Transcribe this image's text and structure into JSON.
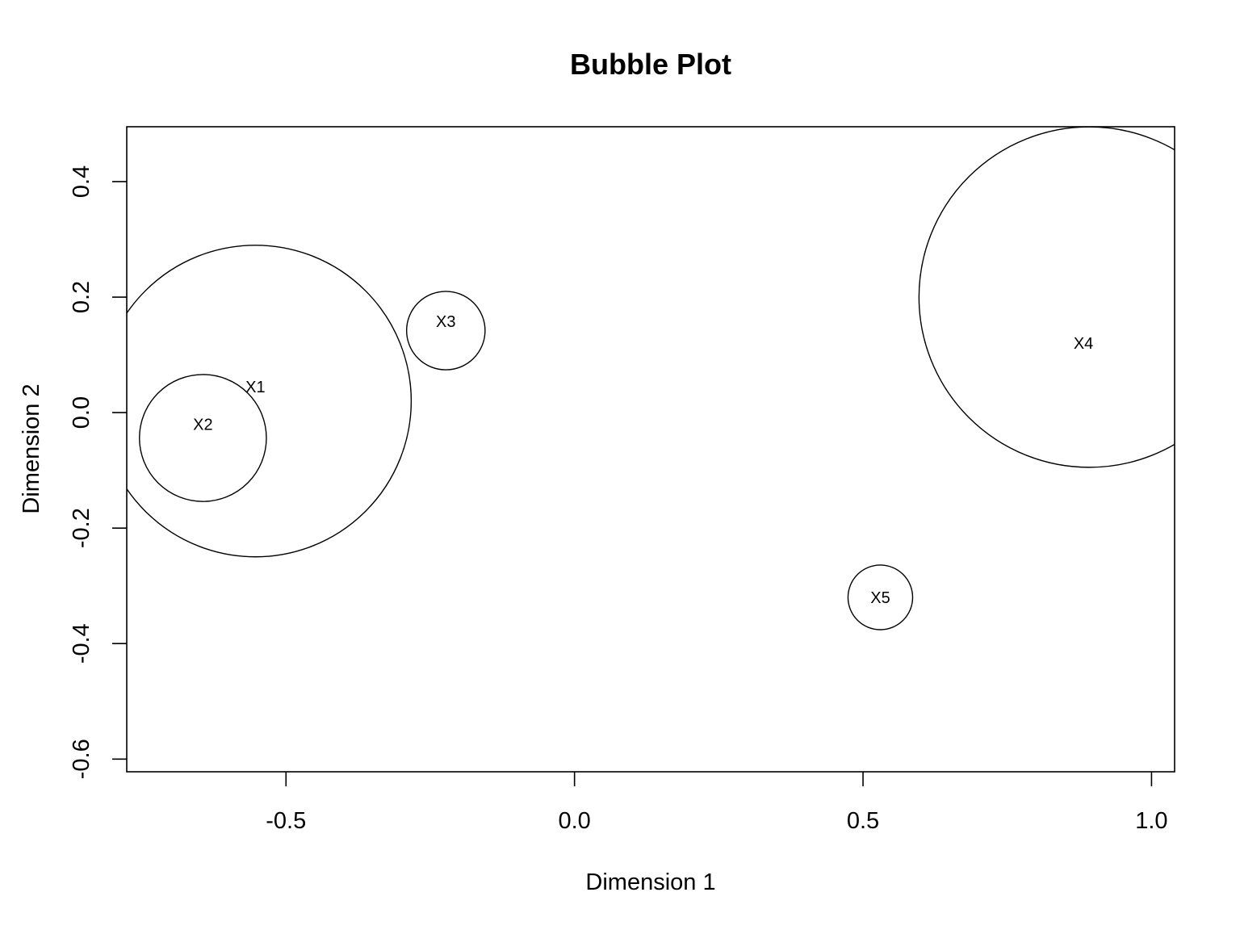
{
  "chart_data": {
    "type": "scatter",
    "variant": "bubble",
    "title": "Bubble Plot",
    "xlabel": "Dimension 1",
    "ylabel": "Dimension 2",
    "xlim": [
      -0.776,
      1.04
    ],
    "ylim": [
      -0.622,
      0.495
    ],
    "xticks": [
      -0.5,
      0.0,
      0.5,
      1.0
    ],
    "xtick_labels": [
      "-0.5",
      "0.0",
      "0.5",
      "1.0"
    ],
    "yticks": [
      -0.6,
      -0.4,
      -0.2,
      0.0,
      0.2,
      0.4
    ],
    "ytick_labels": [
      "-0.6",
      "-0.4",
      "-0.2",
      "0.0",
      "0.2",
      "0.4"
    ],
    "grid": false,
    "legend": "none",
    "points": [
      {
        "label": "X1",
        "x": -0.553,
        "y": 0.02,
        "radius": 0.27,
        "label_x": -0.553,
        "label_y": 0.045
      },
      {
        "label": "X2",
        "x": -0.644,
        "y": -0.044,
        "radius": 0.11,
        "label_x": -0.644,
        "label_y": -0.02
      },
      {
        "label": "X3",
        "x": -0.223,
        "y": 0.142,
        "radius": 0.068,
        "label_x": -0.223,
        "label_y": 0.158
      },
      {
        "label": "X4",
        "x": 0.892,
        "y": 0.2,
        "radius": 0.295,
        "label_x": 0.882,
        "label_y": 0.12
      },
      {
        "label": "X5",
        "x": 0.53,
        "y": -0.32,
        "radius": 0.056,
        "label_x": 0.53,
        "label_y": -0.32
      }
    ]
  }
}
